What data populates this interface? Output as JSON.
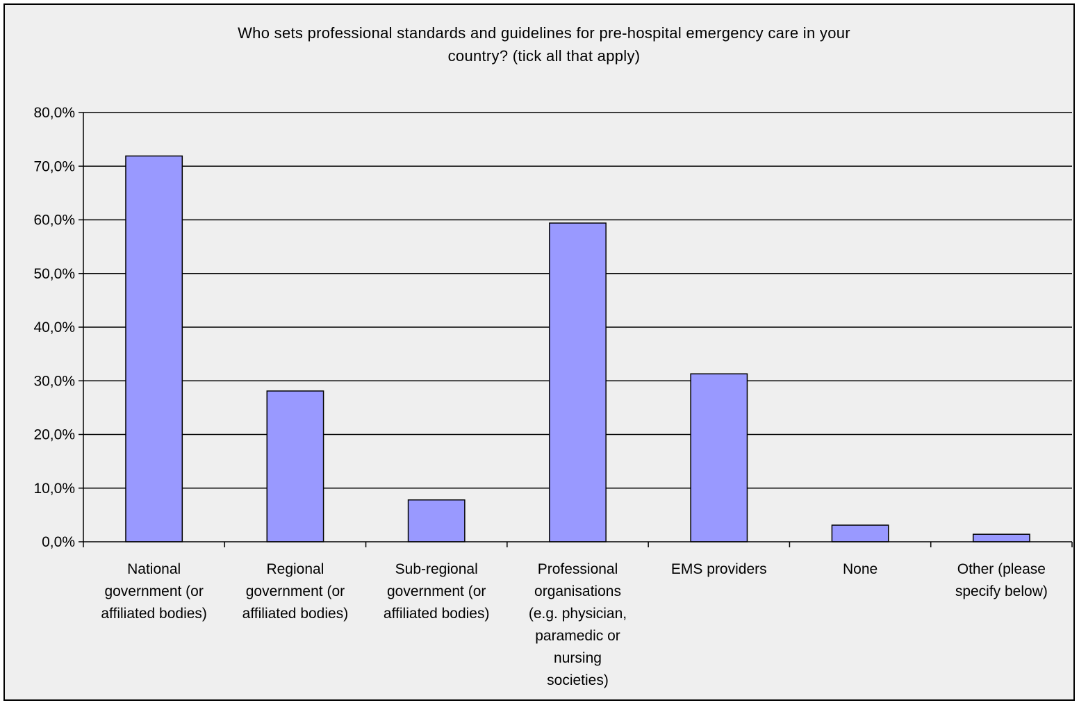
{
  "chart_data": {
    "type": "bar",
    "title_lines": [
      "Who sets professional standards and guidelines for pre-hospital emergency care in your",
      "country? (tick all that apply)"
    ],
    "categories": [
      [
        "National",
        "government (or",
        "affiliated bodies)"
      ],
      [
        "Regional",
        "government (or",
        "affiliated bodies)"
      ],
      [
        "Sub-regional",
        "government (or",
        "affiliated bodies)"
      ],
      [
        "Professional",
        "organisations",
        "(e.g. physician,",
        "paramedic or",
        "nursing",
        "societies)"
      ],
      [
        "EMS providers"
      ],
      [
        "None"
      ],
      [
        "Other (please",
        "specify below)"
      ]
    ],
    "values": [
      71.9,
      28.1,
      7.8,
      59.4,
      31.3,
      3.1,
      1.4
    ],
    "ylim": [
      0,
      80
    ],
    "yticks": [
      0,
      10,
      20,
      30,
      40,
      50,
      60,
      70,
      80
    ],
    "ytick_labels": [
      "0,0%",
      "10,0%",
      "20,0%",
      "30,0%",
      "40,0%",
      "50,0%",
      "60,0%",
      "70,0%",
      "80,0%"
    ],
    "grid": true,
    "legend": false,
    "colors": {
      "bar_fill": "#9999ff",
      "bar_stroke": "#000000",
      "background": "#efefef",
      "grid": "#000000"
    }
  }
}
